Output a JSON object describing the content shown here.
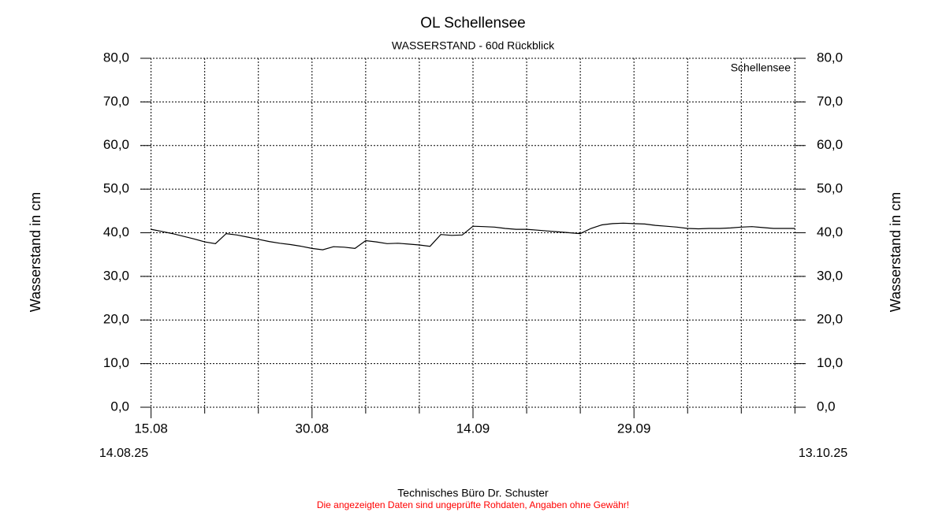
{
  "chart_data": {
    "type": "line",
    "title": "OL Schellensee",
    "subtitle": "WASSERSTAND - 60d Rückblick",
    "ylabel": "Wasserstand in cm",
    "y2label": "Wasserstand in cm",
    "start_label": "14.08.25",
    "end_label": "13.10.25",
    "footer": "Technisches Büro Dr. Schuster",
    "disclaimer": "Die angezeigten Daten sind ungeprüfte Rohdaten, Angaben ohne Gewähr!",
    "disclaimer_color": "#ff0000",
    "legend_position": "upper right",
    "grid": true,
    "xlim": [
      "2025-08-14",
      "2025-10-15"
    ],
    "xticks": [
      {
        "value": "2025-08-15",
        "label": "15.08"
      },
      {
        "value": "2025-08-30",
        "label": "30.08"
      },
      {
        "value": "2025-09-14",
        "label": "14.09"
      },
      {
        "value": "2025-09-29",
        "label": "29.09"
      }
    ],
    "xminorticks": [
      "2025-08-20",
      "2025-08-25",
      "2025-09-04",
      "2025-09-09",
      "2025-09-19",
      "2025-09-24",
      "2025-10-04",
      "2025-10-09",
      "2025-10-14"
    ],
    "ylim": [
      0,
      80
    ],
    "yticks": [
      {
        "value": 0,
        "label": "0,0"
      },
      {
        "value": 10,
        "label": "10,0"
      },
      {
        "value": 20,
        "label": "20,0"
      },
      {
        "value": 30,
        "label": "30,0"
      },
      {
        "value": 40,
        "label": "40,0"
      },
      {
        "value": 50,
        "label": "50,0"
      },
      {
        "value": 60,
        "label": "60,0"
      },
      {
        "value": 70,
        "label": "70,0"
      },
      {
        "value": 80,
        "label": "80,0"
      }
    ],
    "y2lim": [
      0,
      80
    ],
    "y2ticks": [
      {
        "value": 0,
        "label": "0,0"
      },
      {
        "value": 10,
        "label": "10,0"
      },
      {
        "value": 20,
        "label": "20,0"
      },
      {
        "value": 30,
        "label": "30,0"
      },
      {
        "value": 40,
        "label": "40,0"
      },
      {
        "value": 50,
        "label": "50,0"
      },
      {
        "value": 60,
        "label": "60,0"
      },
      {
        "value": 70,
        "label": "70,0"
      },
      {
        "value": 80,
        "label": "80,0"
      }
    ],
    "x": [
      "2025-08-15",
      "2025-08-16",
      "2025-08-17",
      "2025-08-18",
      "2025-08-19",
      "2025-08-20",
      "2025-08-21",
      "2025-08-22",
      "2025-08-23",
      "2025-08-24",
      "2025-08-25",
      "2025-08-26",
      "2025-08-27",
      "2025-08-28",
      "2025-08-29",
      "2025-08-30",
      "2025-08-31",
      "2025-09-01",
      "2025-09-02",
      "2025-09-03",
      "2025-09-04",
      "2025-09-05",
      "2025-09-06",
      "2025-09-07",
      "2025-09-08",
      "2025-09-09",
      "2025-09-10",
      "2025-09-11",
      "2025-09-12",
      "2025-09-13",
      "2025-09-14",
      "2025-09-15",
      "2025-09-16",
      "2025-09-17",
      "2025-09-18",
      "2025-09-19",
      "2025-09-20",
      "2025-09-21",
      "2025-09-22",
      "2025-09-23",
      "2025-09-24",
      "2025-09-25",
      "2025-09-26",
      "2025-09-27",
      "2025-09-28",
      "2025-09-29",
      "2025-09-30",
      "2025-10-01",
      "2025-10-02",
      "2025-10-03",
      "2025-10-04",
      "2025-10-05",
      "2025-10-06",
      "2025-10-07",
      "2025-10-08",
      "2025-10-09",
      "2025-10-10",
      "2025-10-11",
      "2025-10-12",
      "2025-10-13",
      "2025-10-14"
    ],
    "series": [
      {
        "name": "Schellensee",
        "color": "#000000",
        "values": [
          40.8,
          40.3,
          39.8,
          39.2,
          38.6,
          37.9,
          37.5,
          39.8,
          39.5,
          39.0,
          38.5,
          38.0,
          37.6,
          37.3,
          36.9,
          36.4,
          36.1,
          36.8,
          36.7,
          36.4,
          38.2,
          37.9,
          37.5,
          37.6,
          37.4,
          37.2,
          36.9,
          39.6,
          39.4,
          39.5,
          41.5,
          41.4,
          41.3,
          41.0,
          40.8,
          40.8,
          40.6,
          40.4,
          40.2,
          40.0,
          39.8,
          41.0,
          41.8,
          42.1,
          42.2,
          42.1,
          42.0,
          41.7,
          41.5,
          41.3,
          41.0,
          40.9,
          41.0,
          41.0,
          41.1,
          41.3,
          41.4,
          41.2,
          41.0,
          41.0,
          41.0
        ]
      }
    ]
  }
}
